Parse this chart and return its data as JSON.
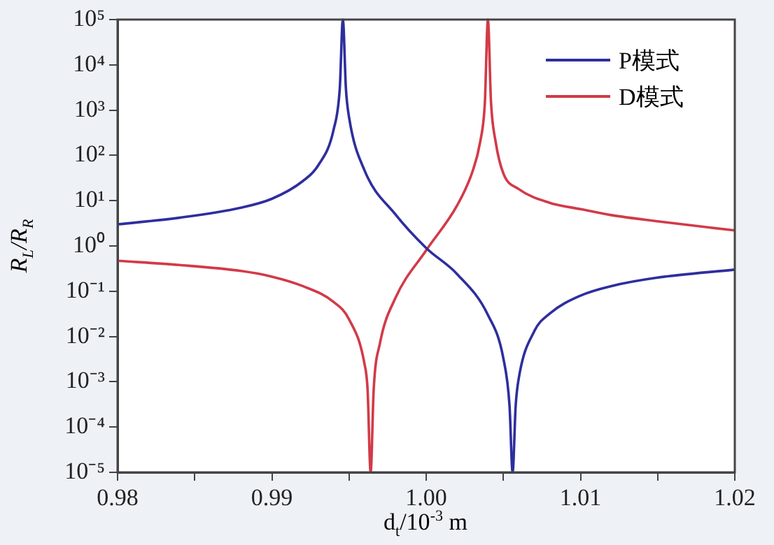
{
  "chart_data": {
    "type": "line",
    "xlabel": "d$_{t}$/10$^{-3}$ m",
    "ylabel": "R$_{L}$/R$_{R}$",
    "log": "y",
    "legend": "top right",
    "grid": false,
    "marker": "none",
    "line_style": "solid",
    "xlim": [
      0.98,
      1.02
    ],
    "ylim": [
      1e-05,
      100000
    ],
    "xticks": [
      0.98,
      {
        "value": 0.985,
        "label": null
      },
      0.99,
      {
        "value": 0.995,
        "label": null
      },
      {
        "value": 1.0,
        "label": "1.00"
      },
      {
        "value": 1.005,
        "label": null
      },
      1.01,
      {
        "value": 1.015,
        "label": null
      },
      1.02
    ],
    "yticks": [
      {
        "value": 1e-05,
        "label": "10⁻⁵"
      },
      {
        "value": 0.0001,
        "label": "10⁻⁴"
      },
      {
        "value": 0.001,
        "label": "10⁻³"
      },
      {
        "value": 0.01,
        "label": "10⁻²"
      },
      {
        "value": 0.1,
        "label": "10⁻¹"
      },
      {
        "value": 1,
        "label": "10⁰"
      },
      {
        "value": 10,
        "label": "10¹"
      },
      {
        "value": 100,
        "label": "10²"
      },
      {
        "value": 1000,
        "label": "10³"
      },
      {
        "value": 10000,
        "label": "10⁴"
      },
      {
        "value": 100000,
        "label": "10⁵"
      }
    ],
    "series": [
      {
        "name": "P模式",
        "color": "#2e2e9e",
        "x": [
          0.98,
          0.984,
          0.988,
          0.99,
          0.992,
          0.993,
          0.994,
          0.9944,
          0.9946,
          0.9948,
          0.995,
          0.996,
          0.998,
          1.0,
          1.002,
          1.004,
          1.005,
          1.0054,
          1.0056,
          1.0058,
          1.006,
          1.007,
          1.008,
          1.01,
          1.012,
          1.015,
          1.02
        ],
        "values": [
          3,
          4.2,
          7,
          11,
          27,
          60,
          370,
          3000,
          100000,
          2900,
          700,
          47,
          5,
          0.9,
          0.24,
          0.03,
          0.0033,
          0.0003,
          1e-05,
          0.0003,
          0.0012,
          0.013,
          0.032,
          0.08,
          0.13,
          0.2,
          0.3
        ]
      },
      {
        "name": "D模式",
        "color": "#d23a48",
        "x": [
          0.98,
          0.984,
          0.988,
          0.99,
          0.992,
          0.994,
          0.995,
          0.996,
          0.9962,
          0.9964,
          0.9966,
          0.997,
          0.998,
          1.0,
          1.002,
          1.003,
          1.0035,
          1.0038,
          1.004,
          1.0042,
          1.0045,
          1.005,
          1.006,
          1.008,
          1.01,
          1.012,
          1.015,
          1.02
        ],
        "values": [
          0.47,
          0.38,
          0.28,
          0.21,
          0.13,
          0.058,
          0.024,
          0.0025,
          0.0007,
          1e-05,
          0.0007,
          0.007,
          0.07,
          0.8,
          7.8,
          44,
          200,
          1400,
          100000,
          1500,
          200,
          40,
          18,
          9,
          6.5,
          4.8,
          3.5,
          2.2
        ]
      }
    ]
  }
}
